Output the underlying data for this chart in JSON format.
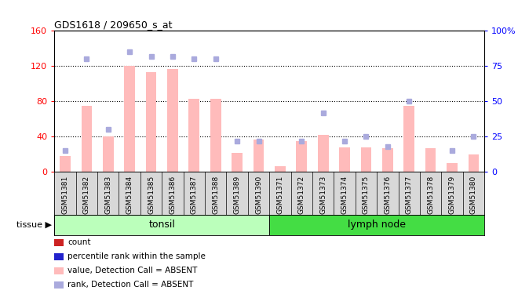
{
  "title": "GDS1618 / 209650_s_at",
  "samples": [
    "GSM51381",
    "GSM51382",
    "GSM51383",
    "GSM51384",
    "GSM51385",
    "GSM51386",
    "GSM51387",
    "GSM51388",
    "GSM51389",
    "GSM51390",
    "GSM51371",
    "GSM51372",
    "GSM51373",
    "GSM51374",
    "GSM51375",
    "GSM51376",
    "GSM51377",
    "GSM51378",
    "GSM51379",
    "GSM51380"
  ],
  "value_bars": [
    18,
    75,
    40,
    120,
    113,
    117,
    83,
    83,
    22,
    37,
    7,
    35,
    42,
    28,
    28,
    27,
    75,
    27,
    10,
    20
  ],
  "rank_dots_pct": [
    15,
    80,
    30,
    85,
    82,
    82,
    80,
    80,
    22,
    22,
    null,
    22,
    42,
    22,
    25,
    18,
    50,
    null,
    15,
    25
  ],
  "tonsil_count": 10,
  "lymph_count": 10,
  "tissue_labels": [
    "tonsil",
    "lymph node"
  ],
  "ylim_left": [
    0,
    160
  ],
  "ylim_right": [
    0,
    100
  ],
  "yticks_left": [
    0,
    40,
    80,
    120,
    160
  ],
  "yticks_right": [
    0,
    25,
    50,
    75,
    100
  ],
  "bar_color_absent": "#ffbbbb",
  "dot_color_absent": "#aaaadd",
  "tonsil_color": "#bbffbb",
  "lymph_color": "#44dd44",
  "xlabel_bg": "#d8d8d8",
  "legend_items": [
    {
      "label": "count",
      "color": "#cc2222"
    },
    {
      "label": "percentile rank within the sample",
      "color": "#2222cc"
    },
    {
      "label": "value, Detection Call = ABSENT",
      "color": "#ffbbbb"
    },
    {
      "label": "rank, Detection Call = ABSENT",
      "color": "#aaaadd"
    }
  ]
}
